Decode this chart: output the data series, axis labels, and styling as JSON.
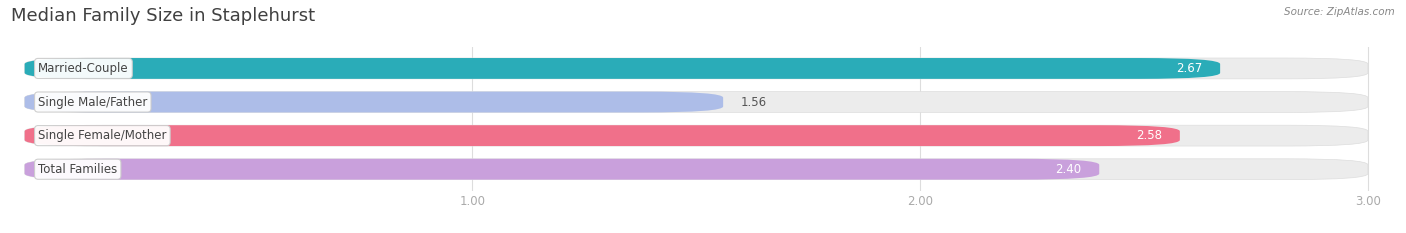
{
  "title": "Median Family Size in Staplehurst",
  "source": "Source: ZipAtlas.com",
  "categories": [
    "Married-Couple",
    "Single Male/Father",
    "Single Female/Mother",
    "Total Families"
  ],
  "values": [
    2.67,
    1.56,
    2.58,
    2.4
  ],
  "bar_colors": [
    "#2aacb8",
    "#adbde8",
    "#f0708a",
    "#c9a0dc"
  ],
  "background_color": "#ffffff",
  "bar_bg_color": "#ececec",
  "xlim_min": 0.0,
  "xlim_max": 3.0,
  "xstart": 0.0,
  "xticks": [
    1.0,
    2.0,
    3.0
  ],
  "title_fontsize": 13,
  "label_fontsize": 8.5,
  "value_fontsize": 8.5,
  "tick_fontsize": 8.5
}
